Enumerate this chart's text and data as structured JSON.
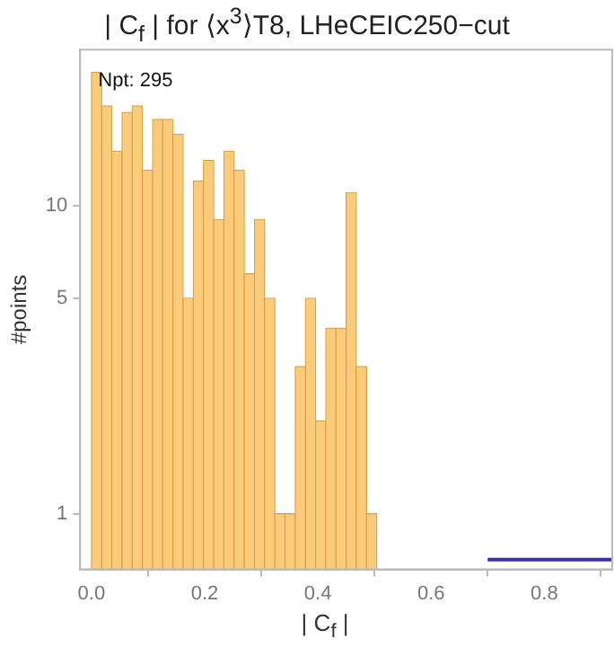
{
  "chart_data": {
    "type": "histogram",
    "title": "| C$_{f}$ | for ⟨x$^{3}$⟩T8, LHeCEIC250−cut",
    "xlabel": "| C$_{f}$ |",
    "ylabel": "#points",
    "annotations": [
      "Npt: 295"
    ],
    "series": [
      {
        "type": "histogram",
        "color": "#f9cb7a",
        "bins": [
          0,
          0.018,
          0.036,
          0.054,
          0.072,
          0.09,
          0.108,
          0.126,
          0.144,
          0.162,
          0.18,
          0.198,
          0.216,
          0.234,
          0.252,
          0.27,
          0.288,
          0.306,
          0.324,
          0.342,
          0.36,
          0.378,
          0.396,
          0.414,
          0.432,
          0.45,
          0.468,
          0.486,
          0.504
        ],
        "values": [
          27,
          21,
          15,
          20,
          21,
          13,
          19,
          19,
          17,
          5,
          12,
          14,
          9,
          15,
          13,
          6,
          9,
          5,
          1,
          1,
          3,
          5,
          2,
          4,
          4,
          11,
          3,
          1
        ]
      },
      {
        "type": "line",
        "color": "#3333aa",
        "x": [
          0.7,
          0.92
        ],
        "values": [
          0.71,
          0.71
        ]
      }
    ],
    "log": true,
    "grid": false,
    "legend": false,
    "xlim": [
      -0.02,
      0.92
    ],
    "xticks": [
      {
        "value": 0,
        "label": "0.0"
      },
      0.2,
      0.4,
      0.6,
      0.8
    ],
    "ylim": [
      0.66,
      32
    ],
    "yticks": [
      1,
      5,
      10
    ]
  }
}
